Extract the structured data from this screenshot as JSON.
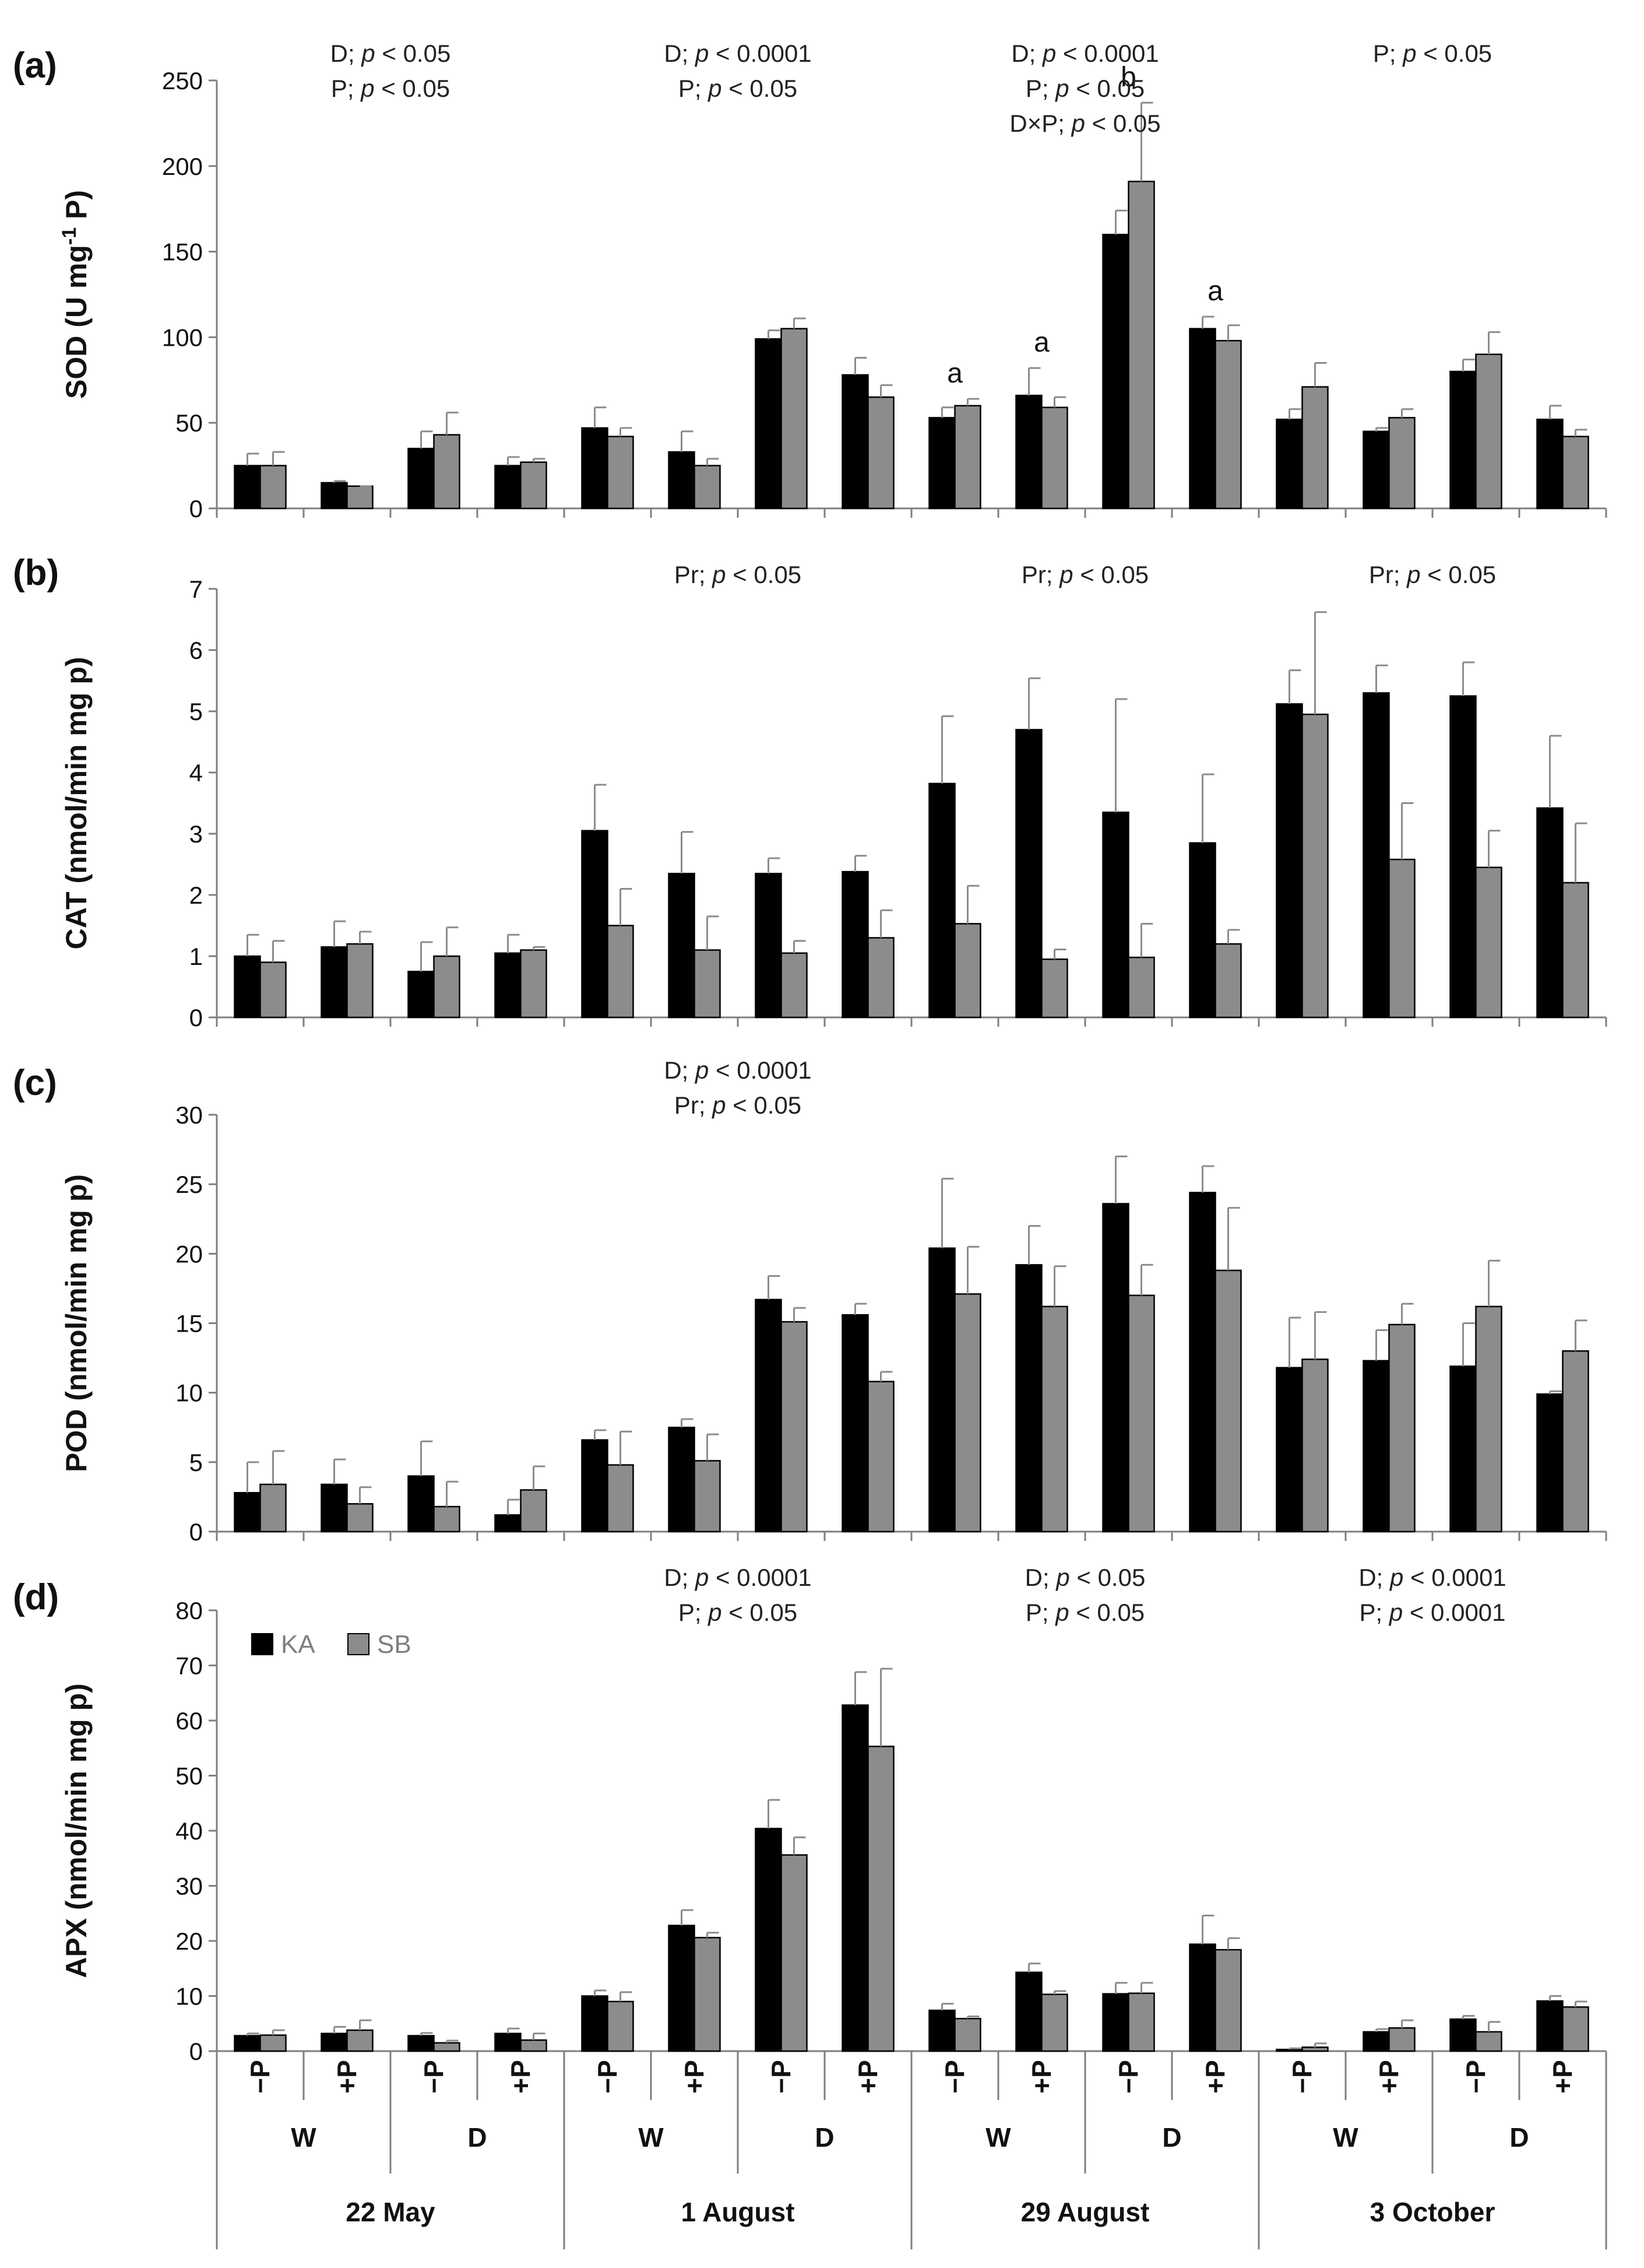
{
  "colors": {
    "KA": "#000000",
    "SB": "#8c8c8c",
    "axis": "#7f7f7f",
    "error": "#8c8c8c"
  },
  "chart_data": {
    "type": "bar",
    "series_names": [
      "KA",
      "SB"
    ],
    "legend": {
      "placement": "top-left of panel (d)",
      "entries": [
        "KA",
        "SB"
      ]
    },
    "x_hierarchy": {
      "treatment": [
        "−P",
        "+P",
        "−P",
        "+P",
        "−P",
        "+P",
        "−P",
        "+P",
        "−P",
        "+P",
        "−P",
        "+P",
        "−P",
        "+P",
        "−P",
        "+P"
      ],
      "water": [
        "W",
        "D",
        "W",
        "D",
        "W",
        "D",
        "W",
        "D"
      ],
      "dates": [
        "22 May",
        "1 August",
        "29 August",
        "3 October"
      ]
    },
    "panels": [
      {
        "label": "(a)",
        "ylabel": "SOD (U mg⁻¹ P)",
        "ylabel_parts": [
          "SOD (U mg",
          "-1",
          " P)"
        ],
        "ylim": [
          0,
          250
        ],
        "yticks": [
          0,
          50,
          100,
          150,
          200,
          250
        ],
        "series": [
          {
            "name": "KA",
            "values": [
              25,
              15,
              35,
              25,
              47,
              33,
              99,
              78,
              53,
              66,
              160,
              105,
              52,
              45,
              80,
              52
            ],
            "errors": [
              7,
              1,
              10,
              5,
              12,
              12,
              5,
              10,
              6,
              16,
              14,
              7,
              6,
              2,
              7,
              8
            ]
          },
          {
            "name": "SB",
            "values": [
              25,
              13,
              43,
              27,
              42,
              25,
              105,
              65,
              60,
              59,
              191,
              98,
              71,
              53,
              90,
              42
            ],
            "errors": [
              8,
              0,
              13,
              2,
              5,
              4,
              6,
              7,
              4,
              6,
              46,
              9,
              14,
              5,
              13,
              4
            ]
          }
        ],
        "stats": [
          {
            "lines": [
              "D; p < 0.05",
              "P; p < 0.05"
            ],
            "date_index": 0
          },
          {
            "lines": [
              "D; p < 0.0001",
              "P; p < 0.05"
            ],
            "date_index": 1
          },
          {
            "lines": [
              "D; p < 0.0001",
              "P; p < 0.05",
              "D×P; p < 0.05"
            ],
            "date_index": 2
          },
          {
            "lines": [
              "P; p < 0.05"
            ],
            "date_index": 3
          }
        ],
        "letters": [
          {
            "text": "a",
            "group": 8
          },
          {
            "text": "a",
            "group": 9
          },
          {
            "text": "b",
            "group": 10
          },
          {
            "text": "a",
            "group": 11
          }
        ]
      },
      {
        "label": "(b)",
        "ylabel": "CAT (nmol/min mg p)",
        "ylim": [
          0,
          7
        ],
        "yticks": [
          0,
          1,
          2,
          3,
          4,
          5,
          6,
          7
        ],
        "series": [
          {
            "name": "KA",
            "values": [
              1.0,
              1.15,
              0.75,
              1.05,
              3.05,
              2.35,
              2.35,
              2.38,
              3.82,
              4.7,
              3.35,
              2.85,
              5.12,
              5.3,
              5.25,
              3.42
            ],
            "errors": [
              0.35,
              0.42,
              0.48,
              0.3,
              0.75,
              0.68,
              0.25,
              0.26,
              1.1,
              0.84,
              1.85,
              1.12,
              0.55,
              0.45,
              0.55,
              1.18
            ]
          },
          {
            "name": "SB",
            "values": [
              0.9,
              1.2,
              1.0,
              1.1,
              1.5,
              1.1,
              1.05,
              1.3,
              1.53,
              0.95,
              0.98,
              1.2,
              4.95,
              2.58,
              2.45,
              2.2
            ],
            "errors": [
              0.35,
              0.2,
              0.47,
              0.05,
              0.6,
              0.55,
              0.2,
              0.45,
              0.62,
              0.16,
              0.55,
              0.23,
              1.67,
              0.92,
              0.6,
              0.97
            ]
          }
        ],
        "stats": [
          {
            "lines": [
              "Pr; p < 0.05"
            ],
            "date_index": 1
          },
          {
            "lines": [
              "Pr; p < 0.05"
            ],
            "date_index": 2
          },
          {
            "lines": [
              "Pr; p < 0.05"
            ],
            "date_index": 3
          }
        ],
        "letters": []
      },
      {
        "label": "(c)",
        "ylabel": "POD (nmol/min mg p)",
        "ylim": [
          0,
          30
        ],
        "yticks": [
          0,
          5,
          10,
          15,
          20,
          25,
          30
        ],
        "series": [
          {
            "name": "KA",
            "values": [
              2.8,
              3.4,
              4.0,
              1.2,
              6.6,
              7.5,
              16.7,
              15.6,
              20.4,
              19.2,
              23.6,
              24.4,
              11.8,
              12.3,
              11.9,
              9.9
            ],
            "errors": [
              2.2,
              1.8,
              2.5,
              1.1,
              0.7,
              0.6,
              1.7,
              0.8,
              5.0,
              2.8,
              3.4,
              1.9,
              3.6,
              2.2,
              3.1,
              0.2
            ]
          },
          {
            "name": "SB",
            "values": [
              3.4,
              2.0,
              1.8,
              3.0,
              4.8,
              5.1,
              15.1,
              10.8,
              17.1,
              16.2,
              17.0,
              18.8,
              12.4,
              14.9,
              16.2,
              13.0
            ],
            "errors": [
              2.4,
              1.2,
              1.8,
              1.7,
              2.4,
              1.9,
              1.0,
              0.7,
              3.4,
              2.9,
              2.2,
              4.5,
              3.4,
              1.5,
              3.3,
              2.2
            ]
          }
        ],
        "stats": [
          {
            "lines": [
              "D; p < 0.0001",
              "Pr; p < 0.05"
            ],
            "date_index": 1
          }
        ],
        "letters": []
      },
      {
        "label": "(d)",
        "ylabel": "APX (nmol/min mg p)",
        "ylim": [
          0,
          80
        ],
        "yticks": [
          0,
          10,
          20,
          30,
          40,
          50,
          60,
          70,
          80
        ],
        "series": [
          {
            "name": "KA",
            "values": [
              2.8,
              3.2,
              2.8,
              3.2,
              10.0,
              22.8,
              40.4,
              62.8,
              7.4,
              14.3,
              10.4,
              19.4,
              0.3,
              3.5,
              5.8,
              9.1
            ],
            "errors": [
              0.4,
              1.2,
              0.5,
              0.9,
              1.0,
              2.8,
              5.2,
              6.0,
              1.2,
              1.6,
              2.0,
              5.2,
              0.2,
              0.5,
              0.6,
              0.9
            ]
          },
          {
            "name": "SB",
            "values": [
              2.9,
              3.8,
              1.5,
              2.0,
              9.0,
              20.6,
              35.6,
              55.3,
              5.9,
              10.3,
              10.5,
              18.4,
              0.7,
              4.2,
              3.5,
              8.0
            ],
            "errors": [
              0.9,
              1.8,
              0.4,
              1.2,
              1.7,
              0.9,
              3.2,
              14.1,
              0.4,
              0.6,
              1.9,
              2.1,
              0.7,
              1.4,
              1.8,
              1.0
            ]
          }
        ],
        "stats": [
          {
            "lines": [
              "D; p < 0.0001",
              "P; p < 0.05"
            ],
            "date_index": 1
          },
          {
            "lines": [
              "D; p < 0.05",
              "P; p < 0.05"
            ],
            "date_index": 2
          },
          {
            "lines": [
              "D; p < 0.0001",
              "P; p < 0.0001"
            ],
            "date_index": 3
          }
        ],
        "letters": []
      }
    ]
  }
}
